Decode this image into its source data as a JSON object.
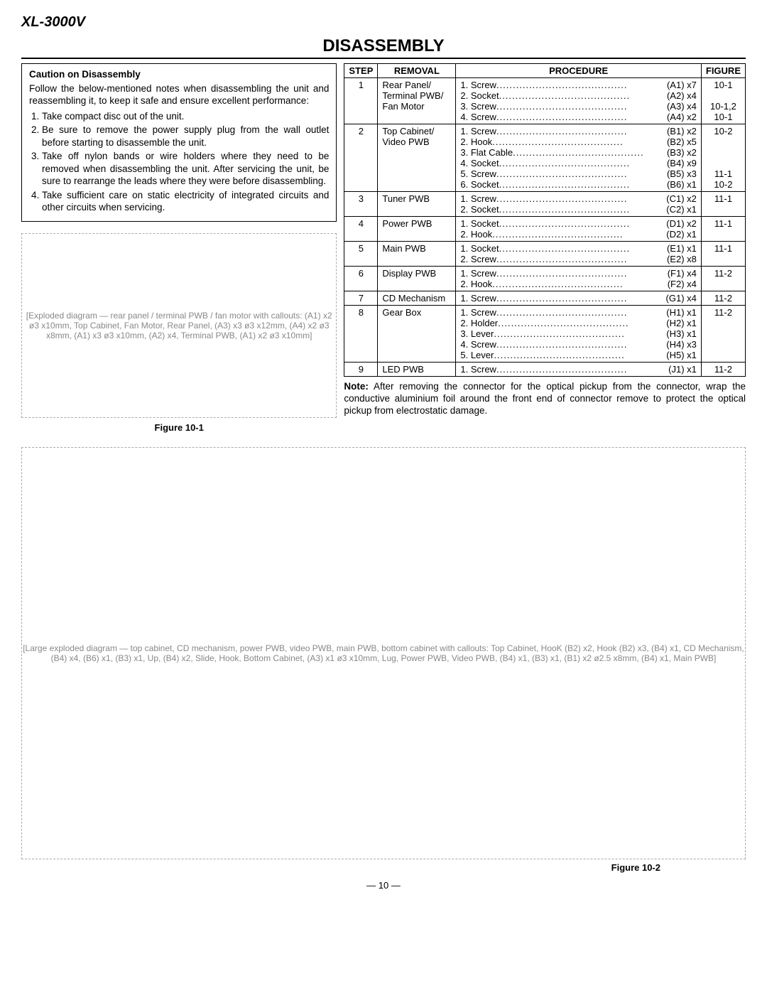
{
  "model": "XL-3000V",
  "title": "DISASSEMBLY",
  "caution": {
    "heading": "Caution on Disassembly",
    "intro": "Follow the below-mentioned notes when disassembling the unit and reassembling it, to keep it safe and ensure excellent performance:",
    "items": [
      "Take compact disc out of the unit.",
      "Be sure to remove the power supply plug from the wall outlet before starting to disassemble the unit.",
      "Take off nylon bands or wire holders where they need to be removed when disassembling the unit. After servicing the unit, be sure to rearrange the leads where they were before disassembling.",
      "Take sufficient care on static electricity of integrated circuits and other circuits when servicing."
    ]
  },
  "table": {
    "headers": {
      "step": "STEP",
      "removal": "REMOVAL",
      "procedure": "PROCEDURE",
      "figure": "FIGURE"
    },
    "rows": [
      {
        "step": "1",
        "removal": "Rear Panel/\nTerminal PWB/\nFan Motor",
        "procedures": [
          {
            "label": "1. Screw",
            "ref": "(A1) x7"
          },
          {
            "label": "2. Socket",
            "ref": "(A2) x4"
          },
          {
            "label": "3. Screw",
            "ref": "(A3) x4"
          },
          {
            "label": "4. Screw",
            "ref": "(A4) x2"
          }
        ],
        "figures": [
          "10-1",
          "",
          "10-1,2",
          "10-1"
        ]
      },
      {
        "step": "2",
        "removal": "Top Cabinet/\nVideo PWB",
        "procedures": [
          {
            "label": "1. Screw",
            "ref": "(B1) x2"
          },
          {
            "label": "2. Hook",
            "ref": "(B2) x5"
          },
          {
            "label": "3. Flat Cable",
            "ref": "(B3) x2"
          },
          {
            "label": "4. Socket",
            "ref": "(B4) x9"
          },
          {
            "label": "5. Screw",
            "ref": "(B5) x3"
          },
          {
            "label": "6. Socket",
            "ref": "(B6) x1"
          }
        ],
        "figures": [
          "10-2",
          "",
          "",
          "",
          "11-1",
          "10-2"
        ]
      },
      {
        "step": "3",
        "removal": "Tuner PWB",
        "procedures": [
          {
            "label": "1. Screw",
            "ref": "(C1) x2"
          },
          {
            "label": "2. Socket",
            "ref": "(C2) x1"
          }
        ],
        "figures": [
          "11-1",
          ""
        ]
      },
      {
        "step": "4",
        "removal": "Power PWB",
        "procedures": [
          {
            "label": "1. Socket",
            "ref": "(D1) x2"
          },
          {
            "label": "2. Hook",
            "ref": "(D2) x1"
          }
        ],
        "figures": [
          "11-1",
          ""
        ]
      },
      {
        "step": "5",
        "removal": "Main PWB",
        "procedures": [
          {
            "label": "1. Socket",
            "ref": "(E1) x1"
          },
          {
            "label": "2. Screw",
            "ref": "(E2) x8"
          }
        ],
        "figures": [
          "11-1",
          ""
        ]
      },
      {
        "step": "6",
        "removal": "Display PWB",
        "procedures": [
          {
            "label": "1. Screw",
            "ref": "(F1) x4"
          },
          {
            "label": "2. Hook",
            "ref": "(F2) x4"
          }
        ],
        "figures": [
          "11-2",
          ""
        ]
      },
      {
        "step": "7",
        "removal": "CD Mechanism",
        "procedures": [
          {
            "label": "1. Screw",
            "ref": "(G1) x4"
          }
        ],
        "figures": [
          "11-2"
        ]
      },
      {
        "step": "8",
        "removal": "Gear Box",
        "procedures": [
          {
            "label": "1. Screw",
            "ref": "(H1) x1"
          },
          {
            "label": "2. Holder",
            "ref": "(H2) x1"
          },
          {
            "label": "3. Lever",
            "ref": "(H3) x1"
          },
          {
            "label": "4. Screw",
            "ref": "(H4) x3"
          },
          {
            "label": "5. Lever",
            "ref": "(H5) x1"
          }
        ],
        "figures": [
          "11-2",
          "",
          "",
          "",
          ""
        ]
      },
      {
        "step": "9",
        "removal": "LED PWB",
        "procedures": [
          {
            "label": "1. Screw",
            "ref": "(J1) x1"
          }
        ],
        "figures": [
          "11-2"
        ]
      }
    ]
  },
  "note": {
    "heading": "Note:",
    "text": "After removing the connector for the optical pickup from the connector, wrap the conductive aluminium foil around the front end of connector remove to protect the optical pickup from electrostatic damage."
  },
  "figures": {
    "f1": {
      "caption": "Figure 10-1",
      "labels": [
        "(A1) x2 ø3 x10mm",
        "Top Cabinet",
        "Fan Motor",
        "Rear Panel",
        "(A3) x3 ø3 x12mm",
        "(A4) x2 ø3 x8mm",
        "(A1) x3 ø3 x10mm",
        "(A2) x4",
        "Terminal PWB",
        "(A1) x2 ø3 x10mm",
        "Rear Panel"
      ]
    },
    "f2": {
      "caption": "Figure 10-2",
      "labels": [
        "Top Cabinet",
        "HooK (B2) x2",
        "Hook (B2) x3",
        "(B4) x1",
        "CD Mechanism",
        "Top Cabinet",
        "(B4) x4",
        "(B6) x1",
        "(B3) x1",
        "Up",
        "(B4) x2",
        "Slide",
        "Hook",
        "Bottom Cabinet",
        "(A3) x1 ø3 x10mm",
        "Lug",
        "Power PWB",
        "Bottom Cabinet",
        "Video PWB",
        "(B4) x1",
        "(B3) x1",
        "(B1) x2 ø2.5 x8mm",
        "(B4) x1",
        "Main PWB"
      ]
    }
  },
  "page_number": "— 10 —"
}
